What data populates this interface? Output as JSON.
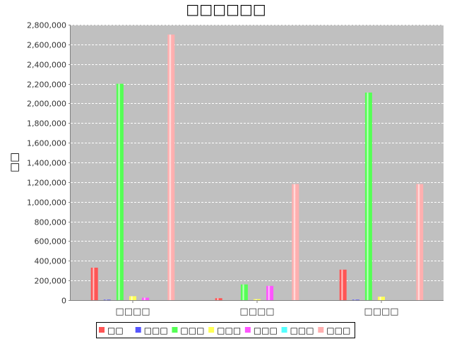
{
  "chart_data": {
    "type": "bar",
    "title": "□□□□□□",
    "xlabel": "",
    "ylabel": "□□",
    "categories": [
      "□□□□",
      "□□□□",
      "□□□□"
    ],
    "ylim": [
      0,
      2800000
    ],
    "ytick_step": 200000,
    "grid": true,
    "legend_position": "bottom",
    "plot_background": "#c0c0c0",
    "series": [
      {
        "name": "□□",
        "color": "#ff5555",
        "values": [
          330000,
          20000,
          310000
        ]
      },
      {
        "name": "□□□",
        "color": "#5555ff",
        "values": [
          5000,
          0,
          5000
        ]
      },
      {
        "name": "□□□",
        "color": "#55ff55",
        "values": [
          2200000,
          160000,
          2110000
        ]
      },
      {
        "name": "□□□",
        "color": "#ffff55",
        "values": [
          40000,
          10000,
          35000
        ]
      },
      {
        "name": "□□□",
        "color": "#ff55ff",
        "values": [
          25000,
          145000,
          0
        ]
      },
      {
        "name": "□□□",
        "color": "#55ffff",
        "values": [
          0,
          0,
          0
        ]
      },
      {
        "name": "□□□",
        "color": "#ffafaf",
        "values": [
          2700000,
          1180000,
          1180000
        ]
      }
    ]
  }
}
